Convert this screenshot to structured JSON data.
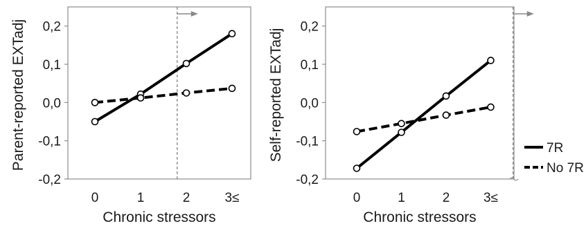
{
  "chart_data": [
    {
      "type": "line",
      "xlabel": "Chronic stressors",
      "ylabel": "Parent-reported EXTadj",
      "categories": [
        "0",
        "1",
        "2",
        "3≤"
      ],
      "x": [
        0,
        1,
        2,
        3
      ],
      "ylim": [
        -0.2,
        0.25
      ],
      "yticks": [
        0.2,
        0.1,
        0.0,
        -0.1,
        -0.2
      ],
      "ytick_labels": [
        "0,2",
        "0,1",
        "0,0",
        "-0,1",
        "-0,2"
      ],
      "grid": false,
      "series": [
        {
          "name": "7R",
          "line_style": "solid",
          "values": [
            -0.05,
            0.022,
            0.102,
            0.18
          ]
        },
        {
          "name": "No 7R",
          "line_style": "dashed",
          "values": [
            0.0,
            0.012,
            0.025,
            0.037
          ]
        }
      ],
      "annotations": [
        {
          "type": "vertical-dashed-line",
          "x": 1.8,
          "arrow": "right"
        }
      ]
    },
    {
      "type": "line",
      "xlabel": "Chronic stressors",
      "ylabel": "Self-reported EXTadj",
      "categories": [
        "0",
        "1",
        "2",
        "3≤"
      ],
      "x": [
        0,
        1,
        2,
        3
      ],
      "ylim": [
        -0.2,
        0.25
      ],
      "yticks": [
        0.2,
        0.1,
        0.0,
        -0.1,
        -0.2
      ],
      "ytick_labels": [
        "0,2",
        "0,1",
        "0,0",
        "-0,1",
        "-0,2"
      ],
      "grid": false,
      "series": [
        {
          "name": "7R",
          "line_style": "solid",
          "values": [
            -0.172,
            -0.078,
            0.017,
            0.11
          ]
        },
        {
          "name": "No 7R",
          "line_style": "dashed",
          "values": [
            -0.076,
            -0.055,
            -0.033,
            -0.012
          ]
        }
      ],
      "annotations": [
        {
          "type": "vertical-dashed-line",
          "x": 3.5,
          "arrow": "right"
        }
      ]
    }
  ],
  "legend": {
    "placement": "right",
    "items": [
      {
        "label": "7R",
        "line_style": "solid"
      },
      {
        "label": "No 7R",
        "line_style": "dashed"
      }
    ]
  }
}
